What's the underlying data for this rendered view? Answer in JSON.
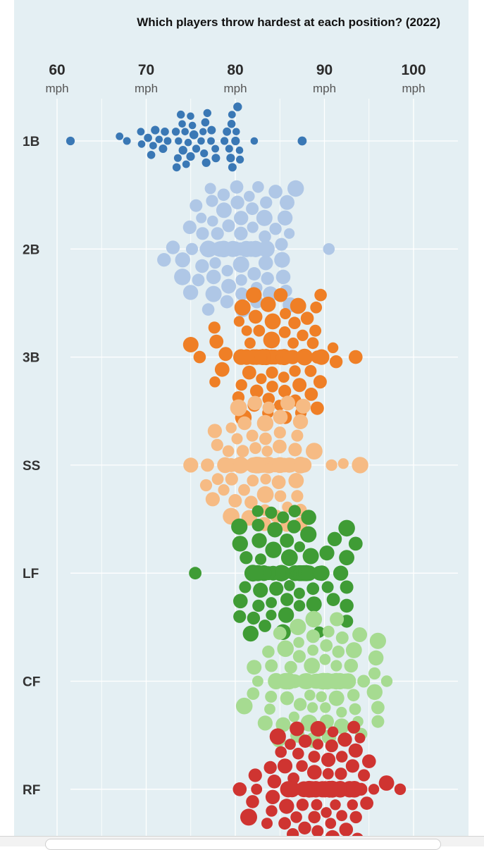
{
  "chart_data": {
    "type": "scatter",
    "subtype": "beeswarm",
    "title": "Which players throw hardest at each position? (2022)",
    "x_ticks": [
      {
        "value": 60,
        "label": "60",
        "unit": "mph"
      },
      {
        "value": 70,
        "label": "70",
        "unit": "mph"
      },
      {
        "value": 80,
        "label": "80",
        "unit": "mph"
      },
      {
        "value": 90,
        "label": "90",
        "unit": "mph"
      },
      {
        "value": 100,
        "label": "100",
        "unit": "mph"
      }
    ],
    "xlim": [
      60,
      100
    ],
    "grid": true,
    "categories": [
      "1B",
      "2B",
      "3B",
      "SS",
      "LF",
      "CF",
      "RF"
    ],
    "series": [
      {
        "category": "1B",
        "color": "#3a78b5",
        "median": 76,
        "spread": 3.6,
        "n": 52,
        "min": 61.5,
        "max": 87.5
      },
      {
        "category": "2B",
        "color": "#afc7e6",
        "median": 80.5,
        "spread": 3.3,
        "n": 95,
        "min": 72,
        "max": 90.5
      },
      {
        "category": "3B",
        "color": "#ef7f26",
        "median": 84,
        "spread": 3.0,
        "n": 88,
        "min": 75,
        "max": 93.5
      },
      {
        "category": "SS",
        "color": "#f6bb84",
        "median": 83.5,
        "spread": 3.2,
        "n": 105,
        "min": 75,
        "max": 94
      },
      {
        "category": "LF",
        "color": "#3f9c35",
        "median": 86,
        "spread": 3.0,
        "n": 100,
        "min": 75.5,
        "max": 93.5
      },
      {
        "category": "CF",
        "color": "#a6db91",
        "median": 88.5,
        "spread": 3.0,
        "n": 110,
        "min": 81,
        "max": 97
      },
      {
        "category": "RF",
        "color": "#cf3431",
        "median": 89,
        "spread": 3.2,
        "n": 112,
        "min": 80.5,
        "max": 98.5
      }
    ]
  }
}
